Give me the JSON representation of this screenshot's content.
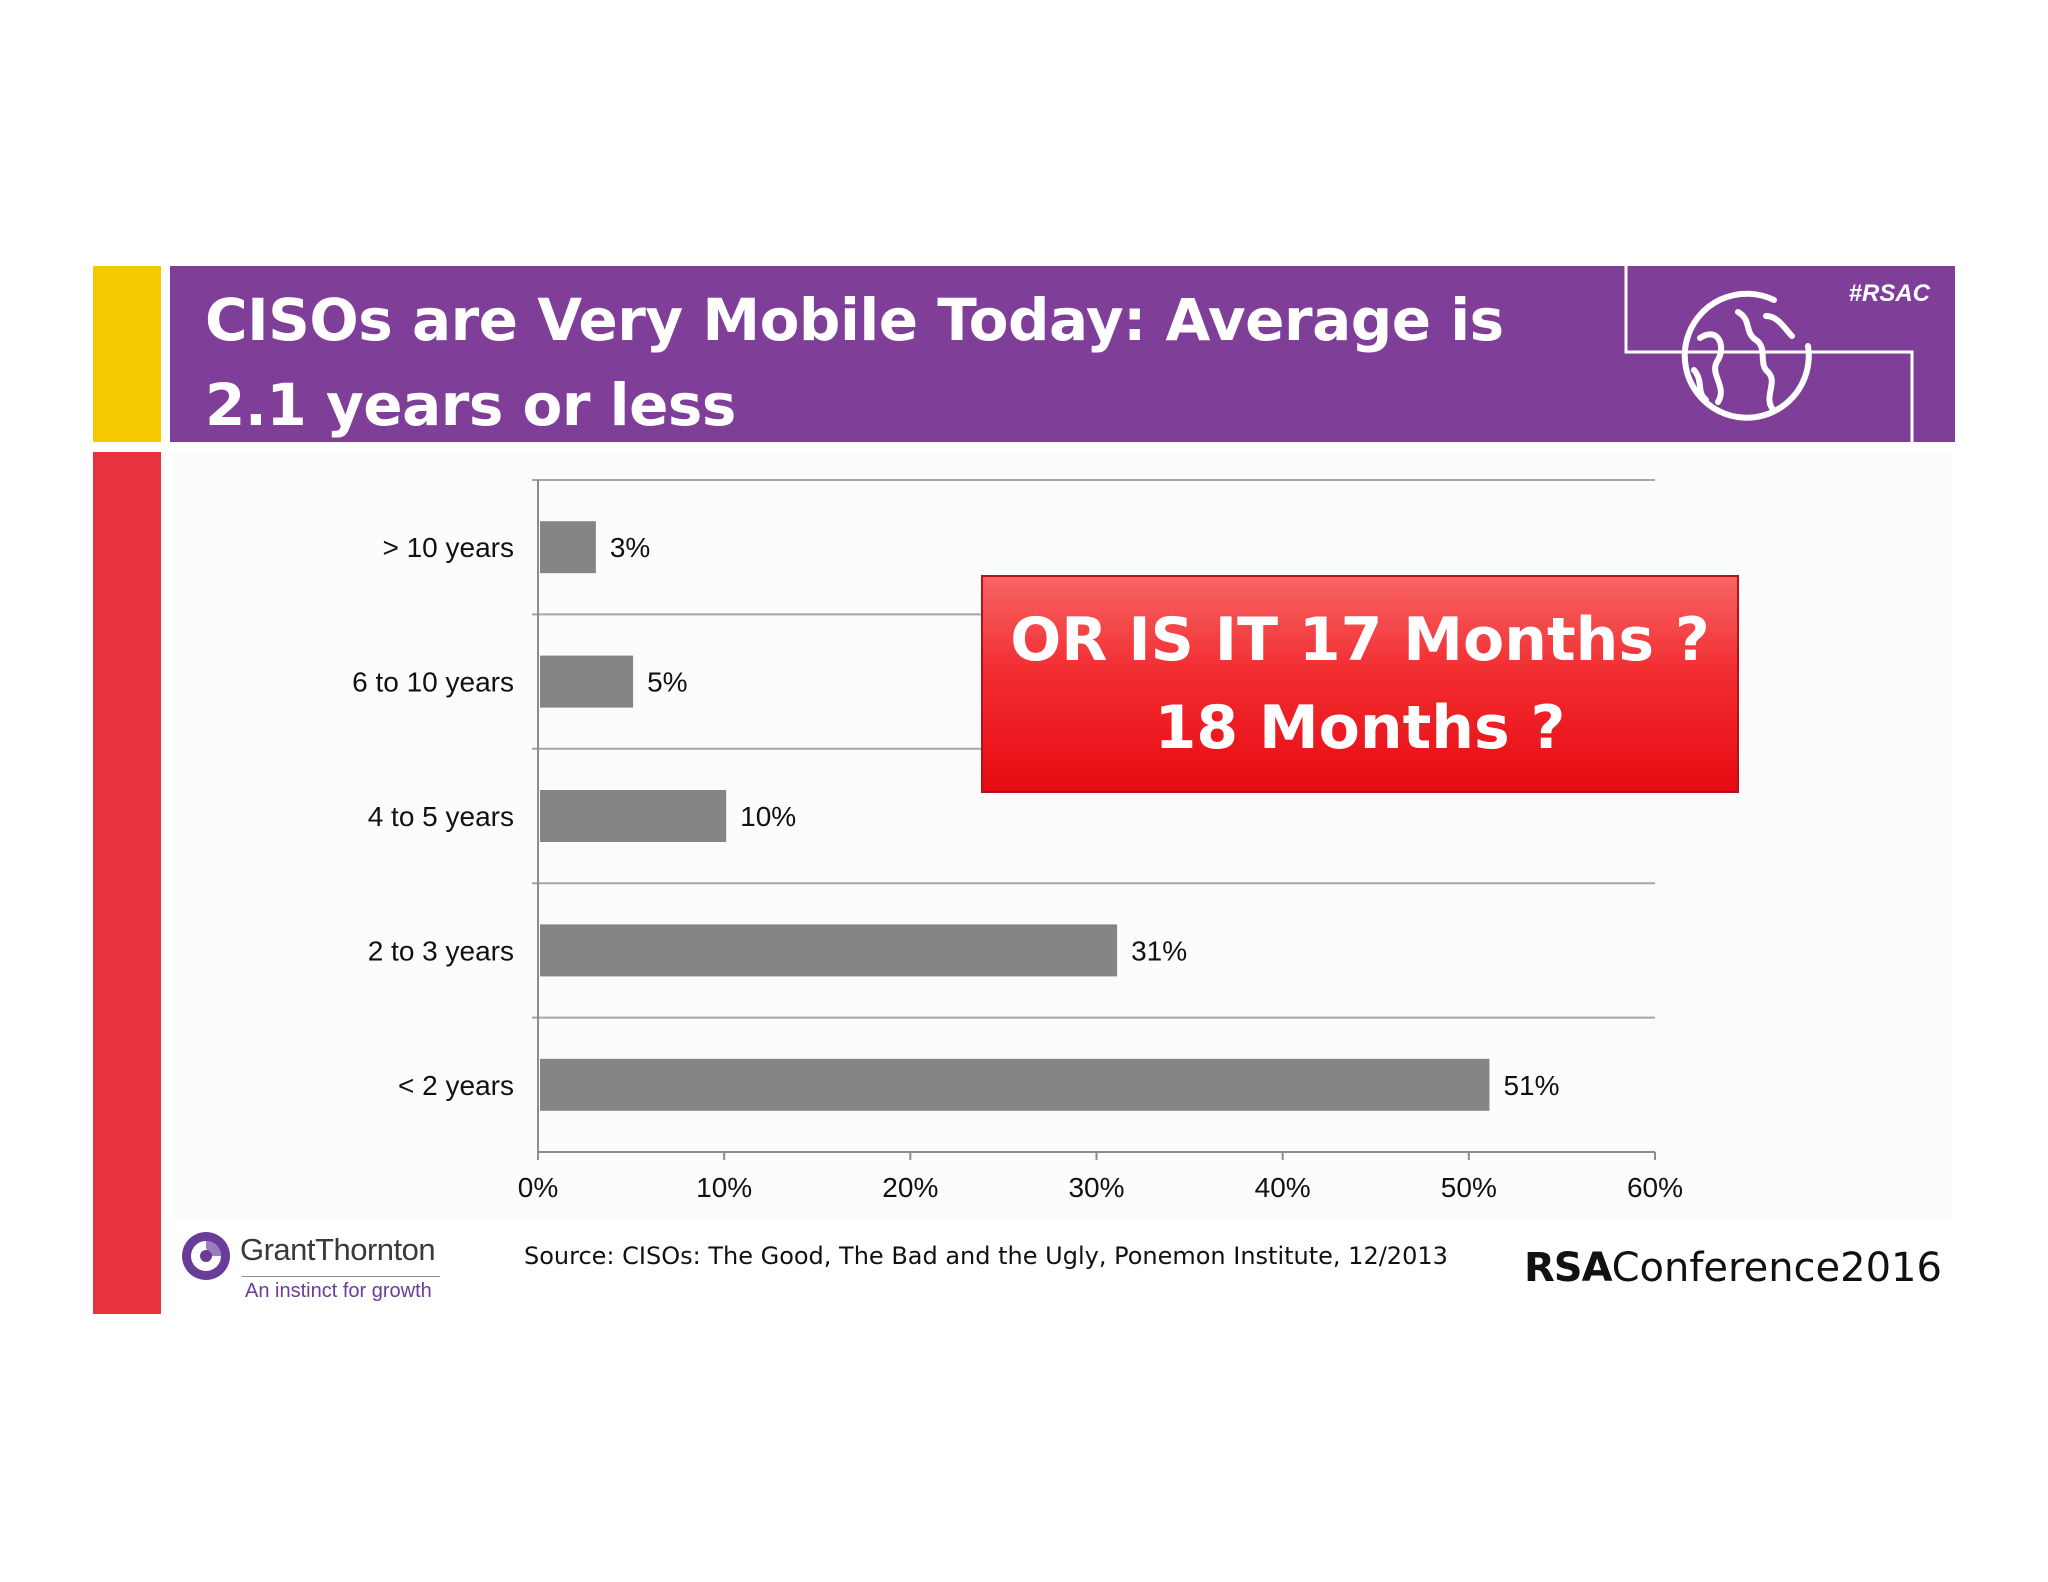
{
  "slide": {
    "title": "CISOs are Very Mobile Today: Average is 2.1 years or less",
    "hashtag": "#RSAC",
    "callout": "OR IS IT 17 Months ? 18 Months ?",
    "source": "Source: CISOs: The Good, The Bad and the Ugly, Ponemon Institute, 12/2013",
    "brand_left": {
      "name": "GrantThornton",
      "tagline": "An instinct for growth"
    },
    "brand_right": {
      "rsa": "RSA",
      "conference": "Conference2016"
    },
    "colors": {
      "header": "#7f3f98",
      "accent_yellow": "#f5c800",
      "accent_red": "#e8323f",
      "callout_red": "#e80b12",
      "bar": "#858585"
    },
    "icons": [
      "globe-icon"
    ]
  },
  "chart_data": {
    "type": "bar",
    "orientation": "horizontal",
    "categories": [
      "> 10 years",
      "6 to 10 years",
      "4 to 5 years",
      "2 to 3 years",
      "< 2 years"
    ],
    "values": [
      3,
      5,
      10,
      31,
      51
    ],
    "value_labels": [
      "3%",
      "5%",
      "10%",
      "31%",
      "51%"
    ],
    "xlim": [
      0,
      60
    ],
    "x_ticks": [
      "0%",
      "10%",
      "20%",
      "30%",
      "40%",
      "50%",
      "60%"
    ],
    "grid": "horizontal separators between categories",
    "legend": "none"
  }
}
